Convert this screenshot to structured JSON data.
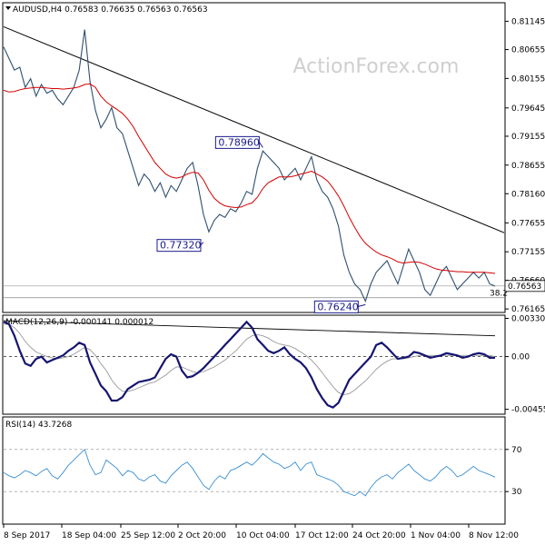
{
  "chart_data": [
    {
      "type": "line",
      "panel": "price",
      "title": "AUDUSD,H4 0.76583 0.76635 0.76563 0.76563",
      "watermark": "ActionForex.com",
      "ylim": [
        0.7612,
        0.8145
      ],
      "y_ticks": [
        "0.81145",
        "0.80655",
        "0.80155",
        "0.79645",
        "0.79155",
        "0.78655",
        "0.78160",
        "0.77655",
        "0.77155",
        "0.76660",
        "0.76165"
      ],
      "current_price": "0.76563",
      "fib_label": "38.2",
      "fib_level": 0.7636,
      "x_tick_labels": [
        "8 Sep 2017",
        "18 Sep 04:00",
        "25 Sep 12:00",
        "2 Oct 20:00",
        "10 Oct 04:00",
        "17 Oct 12:00",
        "24 Oct 20:00",
        "1 Nov 04:00",
        "8 Nov 12:00"
      ],
      "annotations": [
        {
          "text": "0.78960",
          "bar": 48,
          "value": 0.7896
        },
        {
          "text": "0.77320",
          "bar": 37,
          "value": 0.7732
        },
        {
          "text": "0.76240",
          "bar": 67,
          "value": 0.7624
        }
      ],
      "trendline": [
        {
          "bar": 0,
          "value": 0.8105
        },
        {
          "bar": 91,
          "value": 0.7755
        }
      ],
      "series": [
        {
          "values": [
            0.807,
            0.805,
            0.803,
            0.8035,
            0.8,
            0.8015,
            0.7985,
            0.8005,
            0.799,
            0.7995,
            0.798,
            0.797,
            0.7985,
            0.8,
            0.803,
            0.81,
            0.801,
            0.796,
            0.793,
            0.7945,
            0.7965,
            0.793,
            0.792,
            0.789,
            0.786,
            0.783,
            0.785,
            0.784,
            0.782,
            0.7835,
            0.781,
            0.783,
            0.782,
            0.784,
            0.786,
            0.787,
            0.783,
            0.778,
            0.775,
            0.777,
            0.778,
            0.7775,
            0.779,
            0.7785,
            0.78,
            0.782,
            0.7815,
            0.786,
            0.789,
            0.788,
            0.787,
            0.786,
            0.784,
            0.785,
            0.786,
            0.784,
            0.786,
            0.788,
            0.784,
            0.782,
            0.781,
            0.779,
            0.776,
            0.771,
            0.768,
            0.766,
            0.765,
            0.763,
            0.766,
            0.768,
            0.769,
            0.77,
            0.768,
            0.766,
            0.769,
            0.772,
            0.77,
            0.768,
            0.765,
            0.764,
            0.766,
            0.768,
            0.769,
            0.767,
            0.765,
            0.766,
            0.767,
            0.768,
            0.767,
            0.768,
            0.766,
            0.7656
          ]
        },
        {
          "values": [
            0.7995,
            0.7992,
            0.7993,
            0.7996,
            0.7998,
            0.7999,
            0.8,
            0.8,
            0.7999,
            0.7998,
            0.7998,
            0.7997,
            0.7998,
            0.7999,
            0.8001,
            0.8005,
            0.8006,
            0.8,
            0.7985,
            0.7975,
            0.7968,
            0.7962,
            0.7955,
            0.7945,
            0.7932,
            0.7915,
            0.79,
            0.7885,
            0.787,
            0.786,
            0.785,
            0.7845,
            0.7843,
            0.7845,
            0.785,
            0.7853,
            0.7852,
            0.784,
            0.7822,
            0.7808,
            0.78,
            0.7795,
            0.7793,
            0.7792,
            0.7793,
            0.7797,
            0.78,
            0.781,
            0.7825,
            0.7835,
            0.784,
            0.7845,
            0.7845,
            0.7845,
            0.7847,
            0.785,
            0.7852,
            0.7855,
            0.785,
            0.7845,
            0.7838,
            0.7826,
            0.7812,
            0.7795,
            0.7775,
            0.7758,
            0.7742,
            0.773,
            0.7722,
            0.7715,
            0.771,
            0.7707,
            0.7703,
            0.7698,
            0.7696,
            0.7697,
            0.7698,
            0.7697,
            0.7694,
            0.769,
            0.7686,
            0.7684,
            0.7683,
            0.7682,
            0.7681,
            0.7681,
            0.768,
            0.768,
            0.768,
            0.768,
            0.7679,
            0.7678
          ]
        }
      ]
    },
    {
      "type": "line",
      "panel": "macd",
      "title": "MACD(12,26,9) -0.000141 0.000012",
      "ylim": [
        -0.0049,
        0.0035
      ],
      "y_ticks": [
        "0.003305",
        "0.00",
        "-0.004555"
      ],
      "trendline": [
        {
          "bar": 0,
          "value": 0.0031
        },
        {
          "bar": 91,
          "value": 0.0018
        }
      ],
      "series": [
        {
          "values": [
            0.003,
            0.0028,
            0.0018,
            0.0005,
            -0.0006,
            -0.0008,
            -0.0002,
            0.0,
            -0.0005,
            -0.0003,
            -0.0001,
            0.0001,
            0.0005,
            0.0008,
            0.0012,
            0.001,
            -0.0005,
            -0.0015,
            -0.0025,
            -0.003,
            -0.0038,
            -0.0038,
            -0.0035,
            -0.0028,
            -0.0025,
            -0.0022,
            -0.0021,
            -0.002,
            -0.0018,
            -0.001,
            -0.0002,
            0.0002,
            0.0,
            -0.0012,
            -0.0018,
            -0.0017,
            -0.0014,
            -0.001,
            -0.0005,
            0.0,
            0.0005,
            0.001,
            0.0015,
            0.002,
            0.0025,
            0.003,
            0.0025,
            0.0015,
            0.001,
            0.0005,
            0.0003,
            0.0005,
            0.0008,
            0.0002,
            -0.0002,
            -0.0005,
            -0.001,
            -0.0018,
            -0.0028,
            -0.0036,
            -0.0042,
            -0.0044,
            -0.004,
            -0.003,
            -0.002,
            -0.0015,
            -0.001,
            -0.0005,
            0.0,
            0.001,
            0.0012,
            0.0008,
            0.0003,
            -0.0002,
            -0.0001,
            0.0,
            0.0004,
            0.0003,
            0.0001,
            -0.0001,
            0.0,
            0.0001,
            0.0003,
            0.0002,
            0.0001,
            -0.0001,
            0.0,
            0.0002,
            0.0003,
            0.0002,
            -0.0001,
            -0.0001
          ]
        },
        {
          "values": [
            0.0028,
            0.0028,
            0.0025,
            0.002,
            0.0013,
            0.0008,
            0.0004,
            0.0002,
            -0.0,
            -0.0001,
            -0.0002,
            -0.0001,
            0.0,
            0.0002,
            0.0005,
            0.0008,
            0.0006,
            0.0001,
            -0.0006,
            -0.0012,
            -0.002,
            -0.0026,
            -0.003,
            -0.003,
            -0.0029,
            -0.0027,
            -0.0025,
            -0.0023,
            -0.0022,
            -0.0019,
            -0.0016,
            -0.0012,
            -0.0009,
            -0.0009,
            -0.0011,
            -0.0013,
            -0.0014,
            -0.0013,
            -0.0011,
            -0.0009,
            -0.0006,
            -0.0003,
            0.0001,
            0.0005,
            0.001,
            0.0015,
            0.0018,
            0.0019,
            0.0018,
            0.0016,
            0.0013,
            0.0011,
            0.001,
            0.0009,
            0.0007,
            0.0004,
            0.0001,
            -0.0003,
            -0.0008,
            -0.0014,
            -0.002,
            -0.0026,
            -0.0031,
            -0.0033,
            -0.0032,
            -0.0029,
            -0.0025,
            -0.0021,
            -0.0016,
            -0.0011,
            -0.0007,
            -0.0004,
            -0.0002,
            -0.0002,
            -0.0002,
            -0.0001,
            0.0,
            0.0001,
            0.0001,
            0.0001,
            0.0001,
            0.0001,
            0.0001,
            0.0001,
            0.0001,
            0.0001,
            0.0001,
            0.0001,
            0.0001,
            0.0001,
            0.0001,
            0.0
          ]
        }
      ]
    },
    {
      "type": "line",
      "panel": "rsi",
      "title": "RSI(14) 43.7268",
      "ylim": [
        0,
        100
      ],
      "y_ticks": [
        70,
        30
      ],
      "series": [
        {
          "values": [
            48,
            45,
            43,
            46,
            50,
            48,
            45,
            49,
            52,
            45,
            42,
            48,
            55,
            60,
            65,
            70,
            55,
            46,
            48,
            60,
            56,
            52,
            45,
            50,
            48,
            42,
            40,
            44,
            46,
            40,
            38,
            45,
            50,
            55,
            58,
            52,
            44,
            36,
            32,
            40,
            45,
            42,
            50,
            52,
            55,
            58,
            55,
            60,
            66,
            62,
            58,
            56,
            52,
            54,
            58,
            50,
            56,
            58,
            46,
            44,
            42,
            40,
            36,
            30,
            28,
            26,
            30,
            26,
            34,
            40,
            44,
            46,
            42,
            48,
            52,
            56,
            50,
            46,
            42,
            40,
            44,
            50,
            54,
            50,
            44,
            46,
            50,
            54,
            50,
            48,
            46,
            43.7
          ]
        }
      ]
    }
  ]
}
